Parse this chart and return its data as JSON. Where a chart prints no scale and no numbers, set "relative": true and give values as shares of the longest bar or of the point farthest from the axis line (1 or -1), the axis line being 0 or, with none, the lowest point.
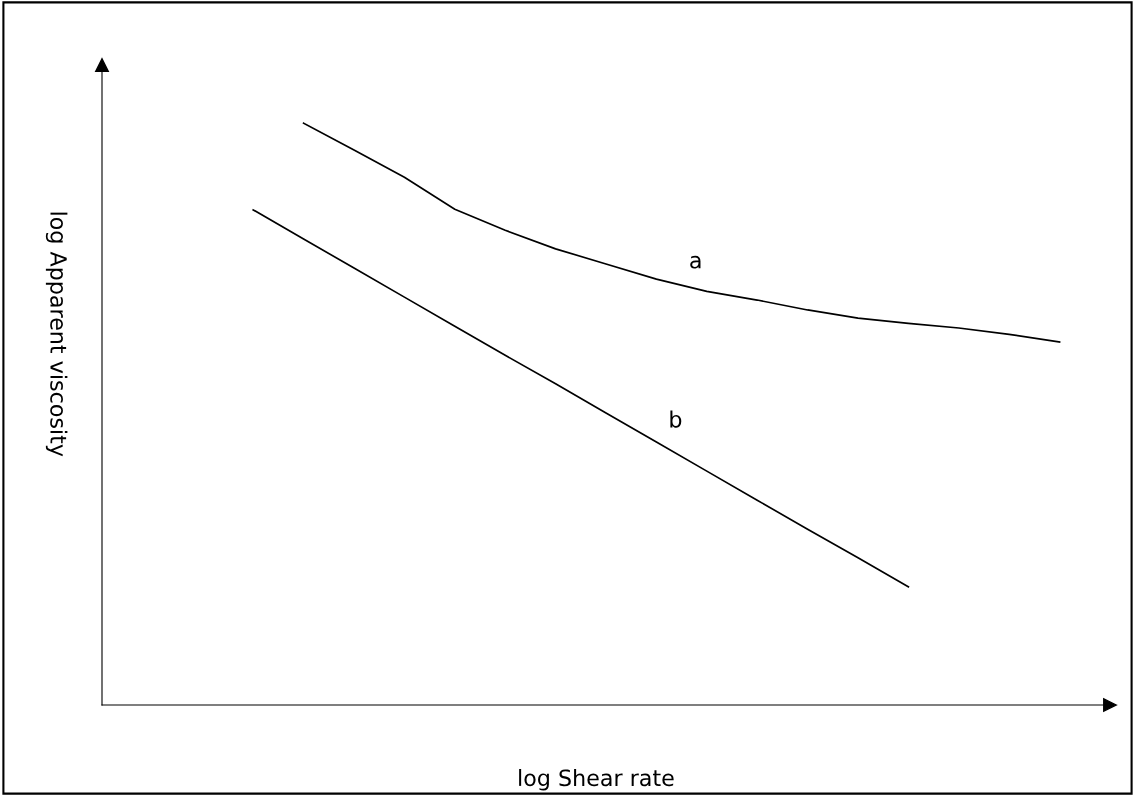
{
  "chart_data": {
    "type": "line",
    "relative": true,
    "xlabel": "log Shear rate",
    "ylabel": "log Apparent viscosity",
    "legend": false,
    "marker": "none",
    "line_style": "solid",
    "categories": [
      null,
      null,
      null,
      null,
      null,
      null,
      null,
      null,
      null,
      null,
      null,
      null,
      null,
      null,
      null,
      null,
      null,
      null
    ],
    "series": [
      {
        "name": "a",
        "color": "#000000",
        "values": [
          null,
          null,
          1.0,
          0.954,
          0.907,
          0.852,
          0.816,
          0.784,
          0.758,
          0.732,
          0.711,
          0.696,
          0.679,
          0.665,
          0.656,
          0.648,
          0.637,
          0.624
        ]
      },
      {
        "name": "b",
        "color": "#000000",
        "values": [
          null,
          0.851,
          0.801,
          0.751,
          0.701,
          0.651,
          0.601,
          0.552,
          0.502,
          0.452,
          0.402,
          0.352,
          0.302,
          0.253,
          0.203,
          null,
          null,
          null
        ]
      }
    ]
  }
}
